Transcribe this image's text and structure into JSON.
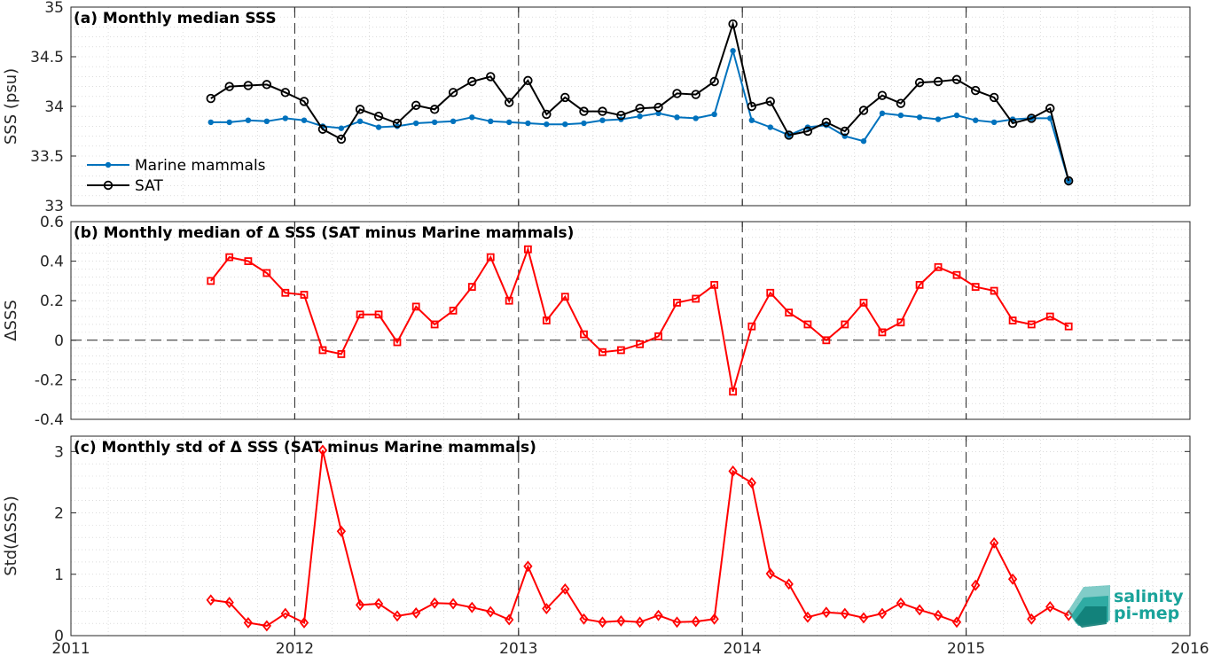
{
  "logo": {
    "line1": "salinity",
    "line2": "pi-mep",
    "color": "#1aa39a"
  },
  "chart_data": [
    {
      "type": "line",
      "title": "(a) Monthly median SSS",
      "ylabel": "SSS (psu)",
      "xlim": [
        2011,
        2016
      ],
      "ylim": [
        33,
        35
      ],
      "yticks": [
        "33",
        "33.5",
        "34",
        "34.5",
        "35"
      ],
      "xticks": [],
      "grid": true,
      "legend": {
        "position": "lower-left",
        "entries": [
          "Marine mammals",
          "SAT"
        ]
      },
      "series": [
        {
          "name": "Marine mammals",
          "color": "#0072bd",
          "marker": "dot",
          "x": [
            2011.625,
            2011.708,
            2011.792,
            2011.875,
            2011.958,
            2012.042,
            2012.125,
            2012.208,
            2012.292,
            2012.375,
            2012.458,
            2012.542,
            2012.625,
            2012.708,
            2012.792,
            2012.875,
            2012.958,
            2013.042,
            2013.125,
            2013.208,
            2013.292,
            2013.375,
            2013.458,
            2013.542,
            2013.625,
            2013.708,
            2013.792,
            2013.875,
            2013.958,
            2014.042,
            2014.125,
            2014.208,
            2014.292,
            2014.375,
            2014.458,
            2014.542,
            2014.625,
            2014.708,
            2014.792,
            2014.875,
            2014.958,
            2015.042,
            2015.125,
            2015.208,
            2015.292,
            2015.375,
            2015.458
          ],
          "y": [
            33.84,
            33.84,
            33.86,
            33.85,
            33.88,
            33.86,
            33.8,
            33.78,
            33.85,
            33.79,
            33.8,
            33.83,
            33.84,
            33.85,
            33.89,
            33.85,
            33.84,
            33.83,
            33.82,
            33.82,
            33.83,
            33.86,
            33.87,
            33.9,
            33.93,
            33.89,
            33.88,
            33.92,
            34.56,
            33.86,
            33.79,
            33.71,
            33.79,
            33.81,
            33.7,
            33.65,
            33.93,
            33.91,
            33.89,
            33.87,
            33.91,
            33.86,
            33.84,
            33.87,
            33.88,
            33.88,
            33.25
          ]
        },
        {
          "name": "SAT",
          "color": "#000000",
          "marker": "circle",
          "x": [
            2011.625,
            2011.708,
            2011.792,
            2011.875,
            2011.958,
            2012.042,
            2012.125,
            2012.208,
            2012.292,
            2012.375,
            2012.458,
            2012.542,
            2012.625,
            2012.708,
            2012.792,
            2012.875,
            2012.958,
            2013.042,
            2013.125,
            2013.208,
            2013.292,
            2013.375,
            2013.458,
            2013.542,
            2013.625,
            2013.708,
            2013.792,
            2013.875,
            2013.958,
            2014.042,
            2014.125,
            2014.208,
            2014.292,
            2014.375,
            2014.458,
            2014.542,
            2014.625,
            2014.708,
            2014.792,
            2014.875,
            2014.958,
            2015.042,
            2015.125,
            2015.208,
            2015.292,
            2015.375,
            2015.458
          ],
          "y": [
            34.08,
            34.2,
            34.21,
            34.22,
            34.14,
            34.05,
            33.77,
            33.67,
            33.97,
            33.9,
            33.83,
            34.01,
            33.97,
            34.14,
            34.25,
            34.3,
            34.04,
            34.26,
            33.92,
            34.09,
            33.95,
            33.95,
            33.91,
            33.98,
            33.99,
            34.13,
            34.12,
            34.25,
            34.83,
            34.0,
            34.05,
            33.71,
            33.75,
            33.84,
            33.75,
            33.96,
            34.11,
            34.03,
            34.24,
            34.25,
            34.27,
            34.16,
            34.09,
            33.83,
            33.88,
            33.98,
            33.25
          ]
        }
      ]
    },
    {
      "type": "line",
      "title": "(b) Monthly median of Δ SSS (SAT minus Marine mammals)",
      "ylabel": "ΔSSS",
      "xlim": [
        2011,
        2016
      ],
      "ylim": [
        -0.4,
        0.6
      ],
      "yticks": [
        "-0.4",
        "-0.2",
        "0",
        "0.2",
        "0.4",
        "0.6"
      ],
      "xticks": [],
      "grid": true,
      "reference_line": 0,
      "series": [
        {
          "name": "",
          "color": "#ff0000",
          "marker": "square",
          "x": [
            2011.625,
            2011.708,
            2011.792,
            2011.875,
            2011.958,
            2012.042,
            2012.125,
            2012.208,
            2012.292,
            2012.375,
            2012.458,
            2012.542,
            2012.625,
            2012.708,
            2012.792,
            2012.875,
            2012.958,
            2013.042,
            2013.125,
            2013.208,
            2013.292,
            2013.375,
            2013.458,
            2013.542,
            2013.625,
            2013.708,
            2013.792,
            2013.875,
            2013.958,
            2014.042,
            2014.125,
            2014.208,
            2014.292,
            2014.375,
            2014.458,
            2014.542,
            2014.625,
            2014.708,
            2014.792,
            2014.875,
            2014.958,
            2015.042,
            2015.125,
            2015.208,
            2015.292,
            2015.375,
            2015.458
          ],
          "y": [
            0.3,
            0.42,
            0.4,
            0.34,
            0.24,
            0.23,
            -0.05,
            -0.07,
            0.13,
            0.13,
            -0.01,
            0.17,
            0.08,
            0.15,
            0.27,
            0.42,
            0.2,
            0.46,
            0.1,
            0.22,
            0.03,
            -0.06,
            -0.05,
            -0.02,
            0.02,
            0.19,
            0.21,
            0.28,
            -0.26,
            0.07,
            0.24,
            0.14,
            0.08,
            0.0,
            0.08,
            0.19,
            0.04,
            0.09,
            0.28,
            0.37,
            0.33,
            0.27,
            0.25,
            0.1,
            0.08,
            0.12,
            0.07
          ]
        }
      ]
    },
    {
      "type": "line",
      "title": "(c) Monthly std of Δ SSS (SAT minus Marine mammals)",
      "ylabel": "Std(ΔSSS)",
      "xlim": [
        2011,
        2016
      ],
      "ylim": [
        0,
        3.25
      ],
      "yticks": [
        "0",
        "1",
        "2",
        "3"
      ],
      "xticks": [
        "2011",
        "2012",
        "2013",
        "2014",
        "2015",
        "2016"
      ],
      "grid": true,
      "series": [
        {
          "name": "",
          "color": "#ff0000",
          "marker": "diamond",
          "x": [
            2011.625,
            2011.708,
            2011.792,
            2011.875,
            2011.958,
            2012.042,
            2012.125,
            2012.208,
            2012.292,
            2012.375,
            2012.458,
            2012.542,
            2012.625,
            2012.708,
            2012.792,
            2012.875,
            2012.958,
            2013.042,
            2013.125,
            2013.208,
            2013.292,
            2013.375,
            2013.458,
            2013.542,
            2013.625,
            2013.708,
            2013.792,
            2013.875,
            2013.958,
            2014.042,
            2014.125,
            2014.208,
            2014.292,
            2014.375,
            2014.458,
            2014.542,
            2014.625,
            2014.708,
            2014.792,
            2014.875,
            2014.958,
            2015.042,
            2015.125,
            2015.208,
            2015.292,
            2015.375,
            2015.458
          ],
          "y": [
            0.58,
            0.54,
            0.21,
            0.16,
            0.36,
            0.21,
            3.02,
            1.7,
            0.5,
            0.52,
            0.32,
            0.37,
            0.53,
            0.52,
            0.46,
            0.39,
            0.26,
            1.13,
            0.44,
            0.76,
            0.27,
            0.22,
            0.24,
            0.22,
            0.33,
            0.22,
            0.23,
            0.27,
            2.68,
            2.49,
            1.01,
            0.84,
            0.3,
            0.38,
            0.36,
            0.29,
            0.36,
            0.53,
            0.42,
            0.33,
            0.22,
            0.82,
            1.51,
            0.92,
            0.27,
            0.47,
            0.33
          ]
        }
      ]
    }
  ]
}
